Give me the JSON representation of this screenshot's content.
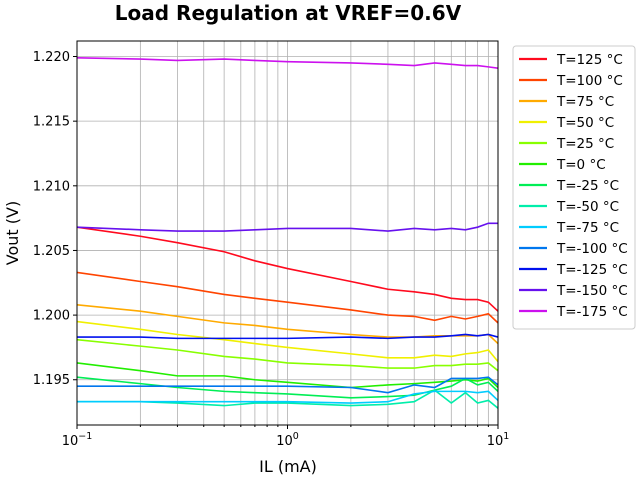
{
  "chart_data": {
    "type": "line",
    "title": "Load Regulation at VREF=0.6V",
    "xlabel": "IL (mA)",
    "ylabel": "Vout (V)",
    "xscale": "log",
    "xlim": [
      0.1,
      10
    ],
    "ylim": [
      1.1915,
      1.2212
    ],
    "xticks": [
      {
        "value": 0.1,
        "base": "10",
        "exp": "−1"
      },
      {
        "value": 1,
        "base": "10",
        "exp": "0"
      },
      {
        "value": 10,
        "base": "10",
        "exp": "1"
      }
    ],
    "yticks": [
      "1.195",
      "1.200",
      "1.205",
      "1.210",
      "1.215",
      "1.220"
    ],
    "grid": true,
    "legend_position": "outside-top-right",
    "series": [
      {
        "name": "T=125 °C",
        "color": "#ff0a1e",
        "x": [
          0.1,
          0.2,
          0.3,
          0.5,
          0.7,
          1,
          2,
          3,
          4,
          5,
          6,
          7,
          8,
          9,
          10
        ],
        "y": [
          1.2068,
          1.2061,
          1.2056,
          1.2049,
          1.2042,
          1.2036,
          1.2026,
          1.202,
          1.2018,
          1.2016,
          1.2013,
          1.2012,
          1.2012,
          1.201,
          1.2003
        ]
      },
      {
        "name": "T=100 °C",
        "color": "#ff4400",
        "x": [
          0.1,
          0.2,
          0.3,
          0.5,
          0.7,
          1,
          2,
          3,
          4,
          5,
          6,
          7,
          8,
          9,
          10
        ],
        "y": [
          1.2033,
          1.2026,
          1.2022,
          1.2016,
          1.2013,
          1.201,
          1.2004,
          1.2,
          1.1999,
          1.1996,
          1.1999,
          1.1997,
          1.1999,
          1.2001,
          1.1994
        ]
      },
      {
        "name": "T=75 °C",
        "color": "#ffaa00",
        "x": [
          0.1,
          0.2,
          0.3,
          0.5,
          0.7,
          1,
          2,
          3,
          4,
          5,
          6,
          7,
          8,
          9,
          10
        ],
        "y": [
          1.2008,
          1.2003,
          1.1999,
          1.1994,
          1.1992,
          1.1989,
          1.1985,
          1.1983,
          1.1983,
          1.1984,
          1.1984,
          1.1984,
          1.1984,
          1.1985,
          1.1978
        ]
      },
      {
        "name": "T=50 °C",
        "color": "#f0f000",
        "x": [
          0.1,
          0.2,
          0.3,
          0.5,
          0.7,
          1,
          2,
          3,
          4,
          5,
          6,
          7,
          8,
          9,
          10
        ],
        "y": [
          1.1995,
          1.1989,
          1.1985,
          1.1981,
          1.1978,
          1.1975,
          1.197,
          1.1967,
          1.1967,
          1.1969,
          1.1968,
          1.197,
          1.1971,
          1.1973,
          1.1964
        ]
      },
      {
        "name": "T=25 °C",
        "color": "#88ff00",
        "x": [
          0.1,
          0.2,
          0.3,
          0.5,
          0.7,
          1,
          2,
          3,
          4,
          5,
          6,
          7,
          8,
          9,
          10
        ],
        "y": [
          1.1981,
          1.1976,
          1.1973,
          1.1968,
          1.1966,
          1.1963,
          1.1961,
          1.1959,
          1.1959,
          1.1961,
          1.1961,
          1.1962,
          1.1962,
          1.1963,
          1.1957
        ]
      },
      {
        "name": "T=0 °C",
        "color": "#22ee00",
        "x": [
          0.1,
          0.2,
          0.3,
          0.5,
          0.7,
          1,
          2,
          3,
          4,
          5,
          6,
          7,
          8,
          9,
          10
        ],
        "y": [
          1.1963,
          1.1957,
          1.1953,
          1.1953,
          1.195,
          1.1948,
          1.1944,
          1.1946,
          1.1947,
          1.1948,
          1.1949,
          1.195,
          1.1949,
          1.1951,
          1.1944
        ]
      },
      {
        "name": "T=-25 °C",
        "color": "#00ee55",
        "x": [
          0.1,
          0.2,
          0.3,
          0.5,
          0.7,
          1,
          2,
          3,
          4,
          5,
          6,
          7,
          8,
          9,
          10
        ],
        "y": [
          1.1952,
          1.1947,
          1.1944,
          1.1941,
          1.194,
          1.1939,
          1.1936,
          1.1937,
          1.1938,
          1.1942,
          1.1945,
          1.1951,
          1.1946,
          1.1948,
          1.1941
        ]
      },
      {
        "name": "T=-50 °C",
        "color": "#00eeaa",
        "x": [
          0.1,
          0.2,
          0.3,
          0.5,
          0.7,
          1,
          2,
          3,
          4,
          5,
          6,
          7,
          8,
          9,
          10
        ],
        "y": [
          1.1933,
          1.1933,
          1.1932,
          1.193,
          1.1932,
          1.1932,
          1.193,
          1.1931,
          1.1933,
          1.1942,
          1.1932,
          1.194,
          1.1932,
          1.1934,
          1.1928
        ]
      },
      {
        "name": "T=-75 °C",
        "color": "#00ccff",
        "x": [
          0.1,
          0.2,
          0.3,
          0.5,
          0.7,
          1,
          2,
          3,
          4,
          5,
          6,
          7,
          8,
          9,
          10
        ],
        "y": [
          1.1933,
          1.1933,
          1.1933,
          1.1933,
          1.1933,
          1.1933,
          1.1932,
          1.1933,
          1.1939,
          1.1941,
          1.1941,
          1.1941,
          1.194,
          1.1941,
          1.1934
        ]
      },
      {
        "name": "T=-100 °C",
        "color": "#0077ee",
        "x": [
          0.1,
          0.2,
          0.3,
          0.5,
          0.7,
          1,
          2,
          3,
          4,
          5,
          6,
          7,
          8,
          9,
          10
        ],
        "y": [
          1.1945,
          1.1945,
          1.1945,
          1.1945,
          1.1945,
          1.1945,
          1.1944,
          1.194,
          1.1946,
          1.1944,
          1.1951,
          1.1951,
          1.1951,
          1.1952,
          1.1946
        ]
      },
      {
        "name": "T=-125 °C",
        "color": "#0010ee",
        "x": [
          0.1,
          0.2,
          0.3,
          0.5,
          0.7,
          1,
          2,
          3,
          4,
          5,
          6,
          7,
          8,
          9,
          10
        ],
        "y": [
          1.1983,
          1.1983,
          1.1982,
          1.1982,
          1.1982,
          1.1982,
          1.1983,
          1.1982,
          1.1983,
          1.1983,
          1.1984,
          1.1985,
          1.1984,
          1.1985,
          1.1983
        ]
      },
      {
        "name": "T=-150 °C",
        "color": "#6611ee",
        "x": [
          0.1,
          0.2,
          0.3,
          0.5,
          0.7,
          1,
          2,
          3,
          4,
          5,
          6,
          7,
          8,
          9,
          10
        ],
        "y": [
          1.2068,
          1.2066,
          1.2065,
          1.2065,
          1.2066,
          1.2067,
          1.2067,
          1.2065,
          1.2067,
          1.2066,
          1.2067,
          1.2066,
          1.2068,
          1.2071,
          1.2071
        ]
      },
      {
        "name": "T=-175 °C",
        "color": "#cc11ee",
        "x": [
          0.1,
          0.2,
          0.3,
          0.5,
          0.7,
          1,
          2,
          3,
          4,
          5,
          6,
          7,
          8,
          9,
          10
        ],
        "y": [
          1.2199,
          1.2198,
          1.2197,
          1.2198,
          1.2197,
          1.2196,
          1.2195,
          1.2194,
          1.2193,
          1.2195,
          1.2194,
          1.2193,
          1.2193,
          1.2192,
          1.2191
        ]
      }
    ]
  }
}
